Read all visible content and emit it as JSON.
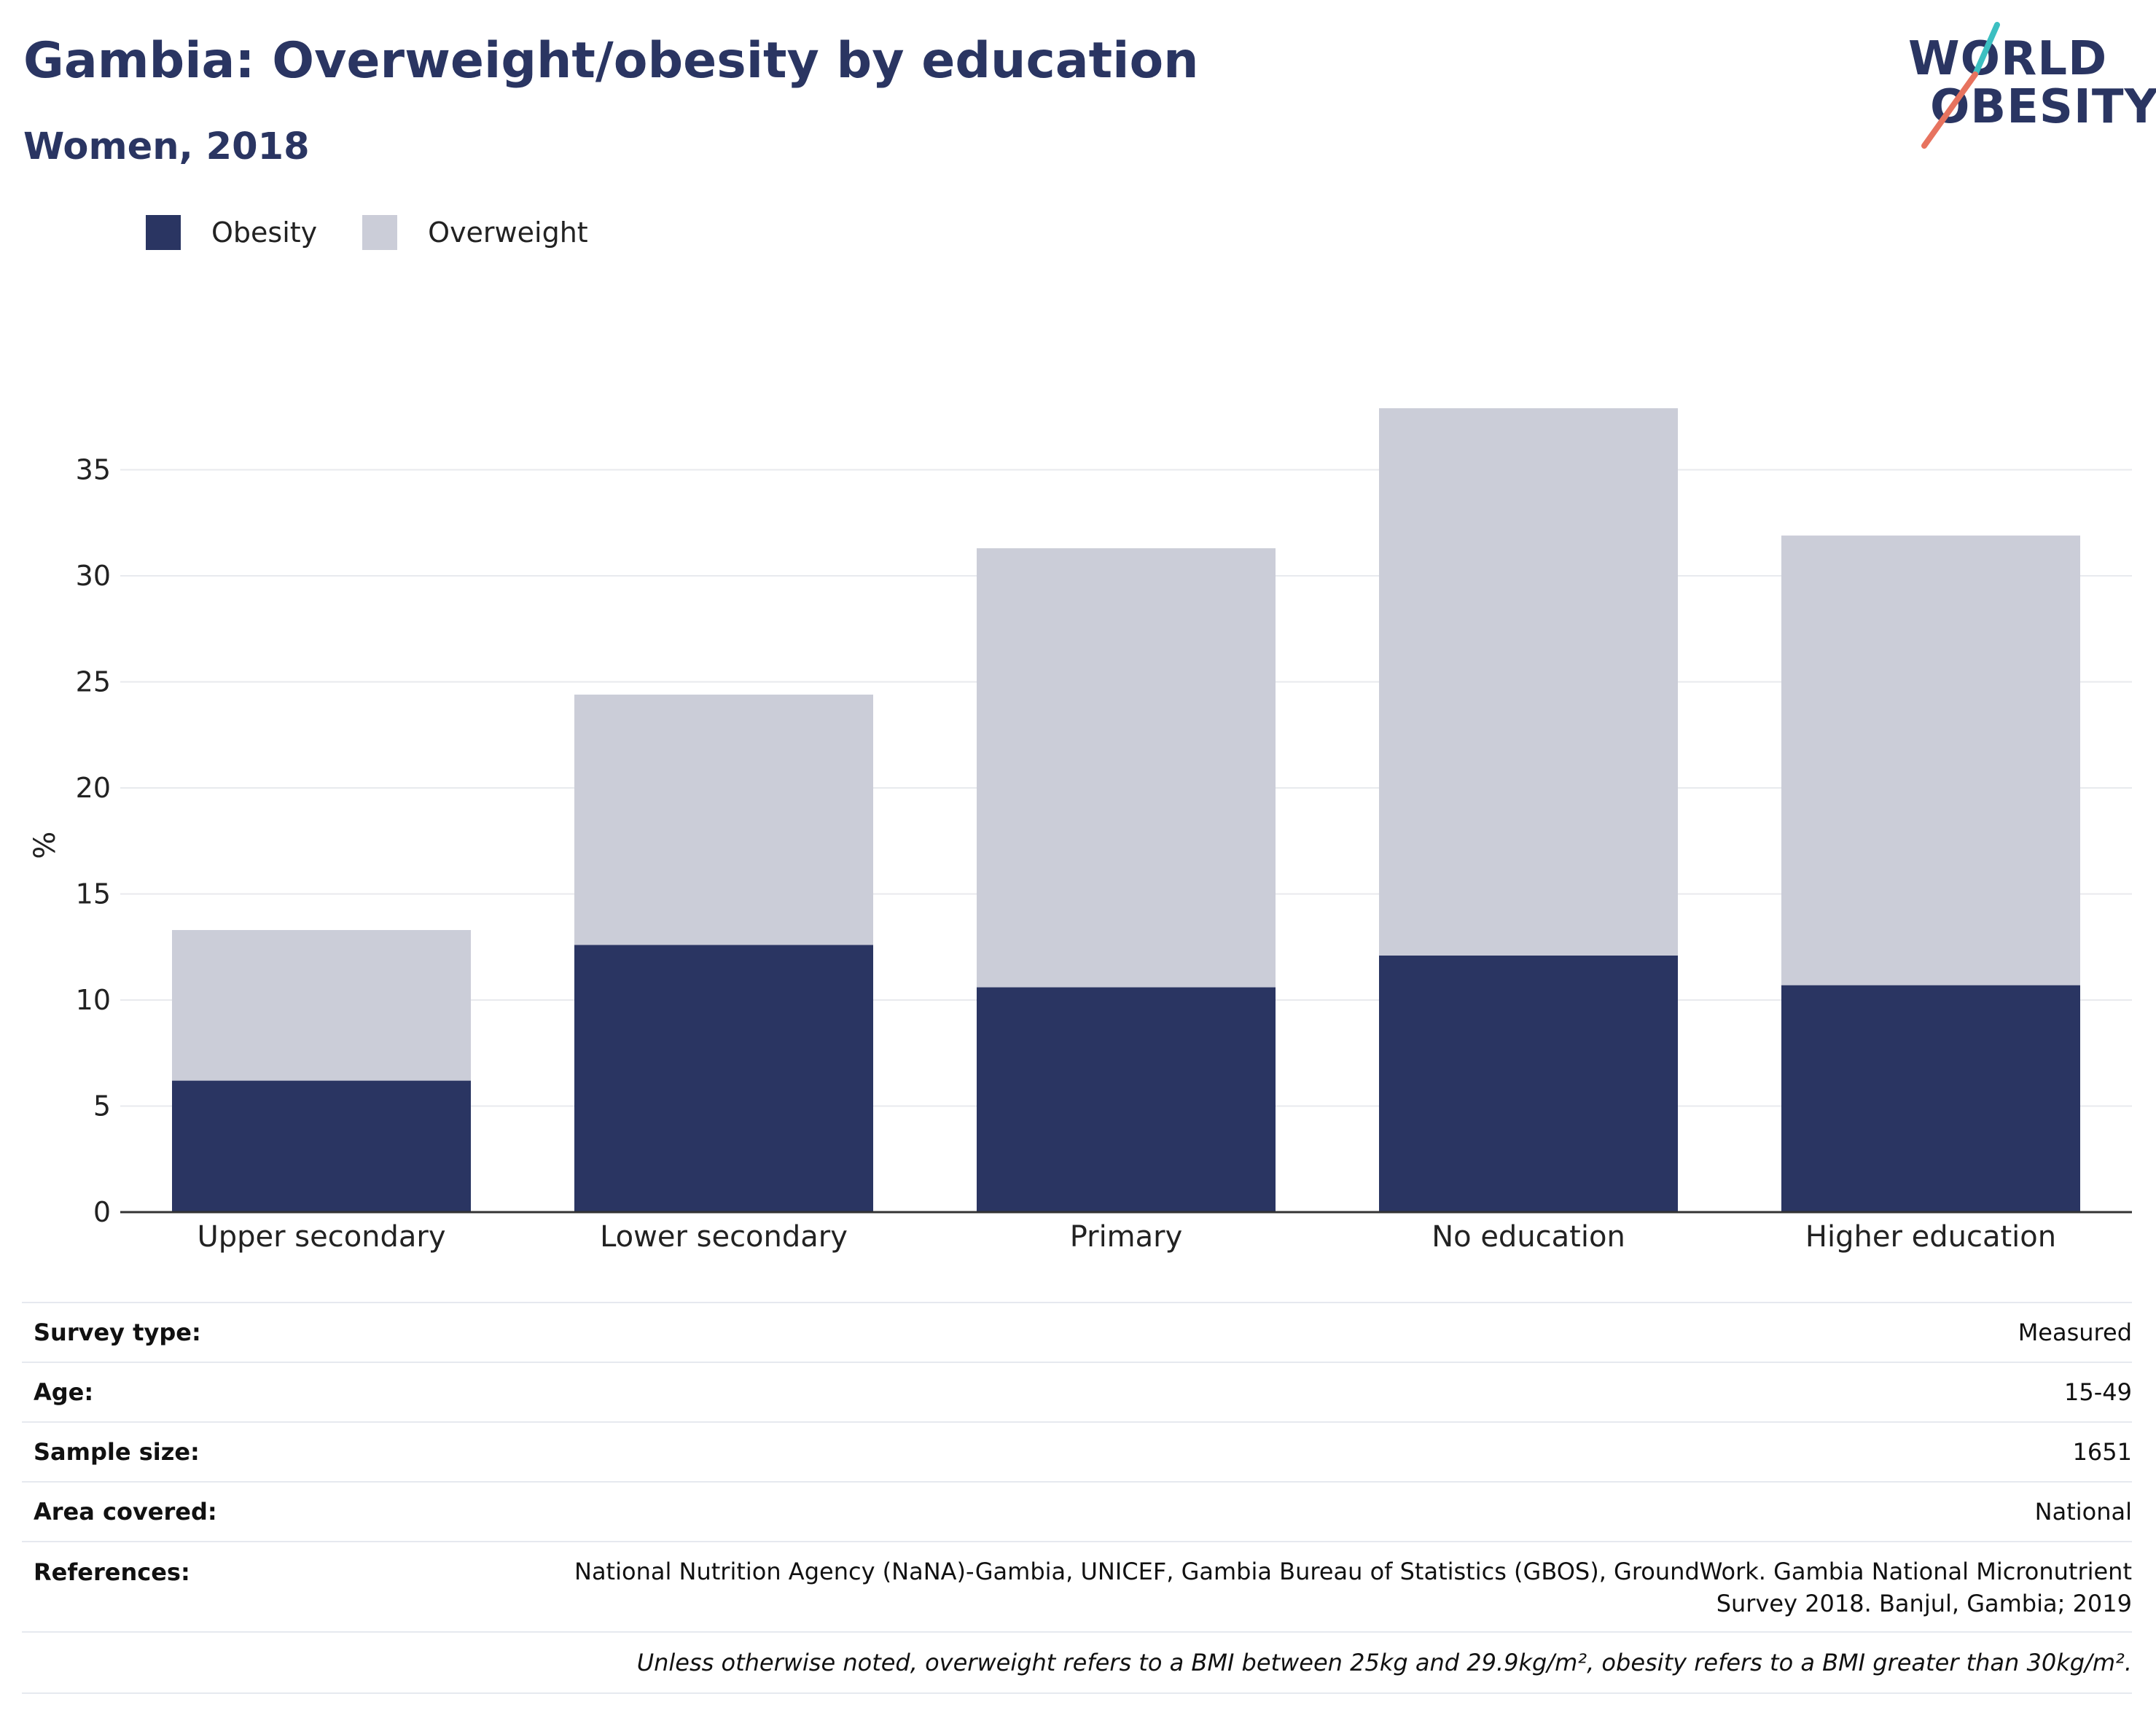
{
  "title": "Gambia: Overweight/obesity by education",
  "subtitle": "Women, 2018",
  "logo": {
    "line1": "WORLD",
    "line2": "OBESITY",
    "accent_teal": "#3cbfc1",
    "accent_coral": "#e7735f"
  },
  "colors": {
    "obesity": "#2a3562",
    "overweight": "#cbcdd8",
    "grid": "#e8eaee",
    "axis": "#333333"
  },
  "chart_data": {
    "type": "bar",
    "stacked": true,
    "categories": [
      "Upper secondary",
      "Lower secondary",
      "Primary",
      "No education",
      "Higher education"
    ],
    "series": [
      {
        "name": "Obesity",
        "values": [
          6.2,
          12.6,
          10.6,
          12.1,
          10.7
        ]
      },
      {
        "name": "Overweight",
        "values": [
          7.1,
          11.8,
          20.7,
          25.8,
          21.2
        ]
      }
    ],
    "ylabel": "%",
    "xlabel": "",
    "ylim": [
      0,
      38
    ],
    "yticks": [
      0,
      5,
      10,
      15,
      20,
      25,
      30,
      35
    ],
    "grid": true,
    "legend_position": "top-left"
  },
  "info": {
    "rows": [
      {
        "key": "Survey type:",
        "value": "Measured"
      },
      {
        "key": "Age:",
        "value": "15-49"
      },
      {
        "key": "Sample size:",
        "value": "1651"
      },
      {
        "key": "Area covered:",
        "value": "National"
      },
      {
        "key": "References:",
        "value_line1": "National Nutrition Agency (NaNA)-Gambia, UNICEF, Gambia Bureau of Statistics (GBOS), GroundWork. Gambia National Micronutrient",
        "value_line2": "Survey 2018. Banjul, Gambia; 2019"
      }
    ],
    "note": "Unless otherwise noted, overweight refers to a BMI between 25kg and 29.9kg/m², obesity refers to a BMI greater than 30kg/m²."
  }
}
